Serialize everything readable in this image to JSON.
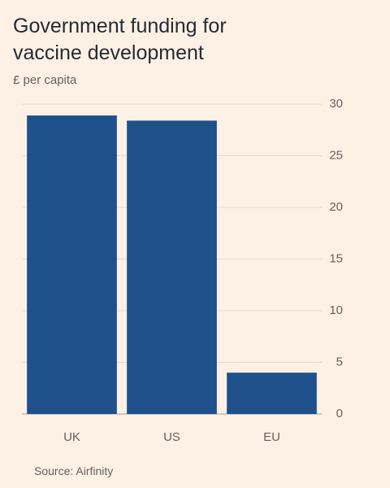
{
  "chart_data": {
    "type": "bar",
    "title": "Government funding for vaccine development",
    "subtitle": "£ per capita",
    "source": "Source: Airfinity",
    "categories": [
      "UK",
      "US",
      "EU"
    ],
    "values": [
      28.9,
      28.4,
      4.0
    ],
    "color": "#1e508c",
    "ylim": [
      0,
      30
    ],
    "yticks": [
      0,
      5,
      10,
      15,
      20,
      25,
      30
    ],
    "grid": true
  }
}
